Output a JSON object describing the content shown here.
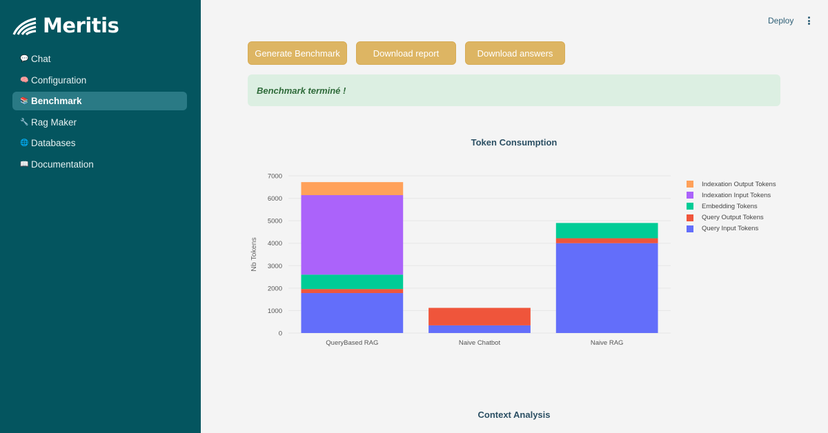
{
  "brand": {
    "name": "Meritis"
  },
  "sidebar": {
    "items": [
      {
        "label": "Chat",
        "icon": "💬",
        "icon_name": "speech-bubble-icon",
        "active": false
      },
      {
        "label": "Configuration",
        "icon": "🧠",
        "icon_name": "brain-icon",
        "active": false
      },
      {
        "label": "Benchmark",
        "icon": "📚",
        "icon_name": "books-icon",
        "active": true
      },
      {
        "label": "Rag Maker",
        "icon": "🔧",
        "icon_name": "wrench-icon",
        "active": false
      },
      {
        "label": "Databases",
        "icon": "🌐",
        "icon_name": "globe-icon",
        "active": false
      },
      {
        "label": "Documentation",
        "icon": "📖",
        "icon_name": "open-book-icon",
        "active": false
      }
    ]
  },
  "header": {
    "deploy_label": "Deploy"
  },
  "toolbar": {
    "generate_label": "Generate Benchmark",
    "report_label": "Download report",
    "answers_label": "Download answers"
  },
  "alert": {
    "message": "Benchmark terminé !"
  },
  "colors": {
    "sidebar": "#04555f",
    "button": "#ddb563",
    "alert_bg": "#dcefe2"
  },
  "chart_data": {
    "type": "bar",
    "stacked": true,
    "title": "Token Consumption",
    "xlabel": "",
    "ylabel": "Nb Tokens",
    "ylim": [
      0,
      7000
    ],
    "yticks": [
      0,
      1000,
      2000,
      3000,
      4000,
      5000,
      6000,
      7000
    ],
    "categories": [
      "QueryBased RAG",
      "Naive Chatbot",
      "Naive RAG"
    ],
    "legend_position": "right",
    "series": [
      {
        "name": "Query Input Tokens",
        "color": "#636efa",
        "values": [
          1780,
          340,
          4000
        ]
      },
      {
        "name": "Query Output Tokens",
        "color": "#ef553b",
        "values": [
          180,
          780,
          220
        ]
      },
      {
        "name": "Embedding Tokens",
        "color": "#00cc96",
        "values": [
          640,
          0,
          680
        ]
      },
      {
        "name": "Indexation Input Tokens",
        "color": "#ab63fa",
        "values": [
          3540,
          0,
          0
        ]
      },
      {
        "name": "Indexation Output Tokens",
        "color": "#ffa15a",
        "values": [
          580,
          0,
          0
        ]
      }
    ]
  },
  "section": {
    "context_title": "Context Analysis"
  }
}
